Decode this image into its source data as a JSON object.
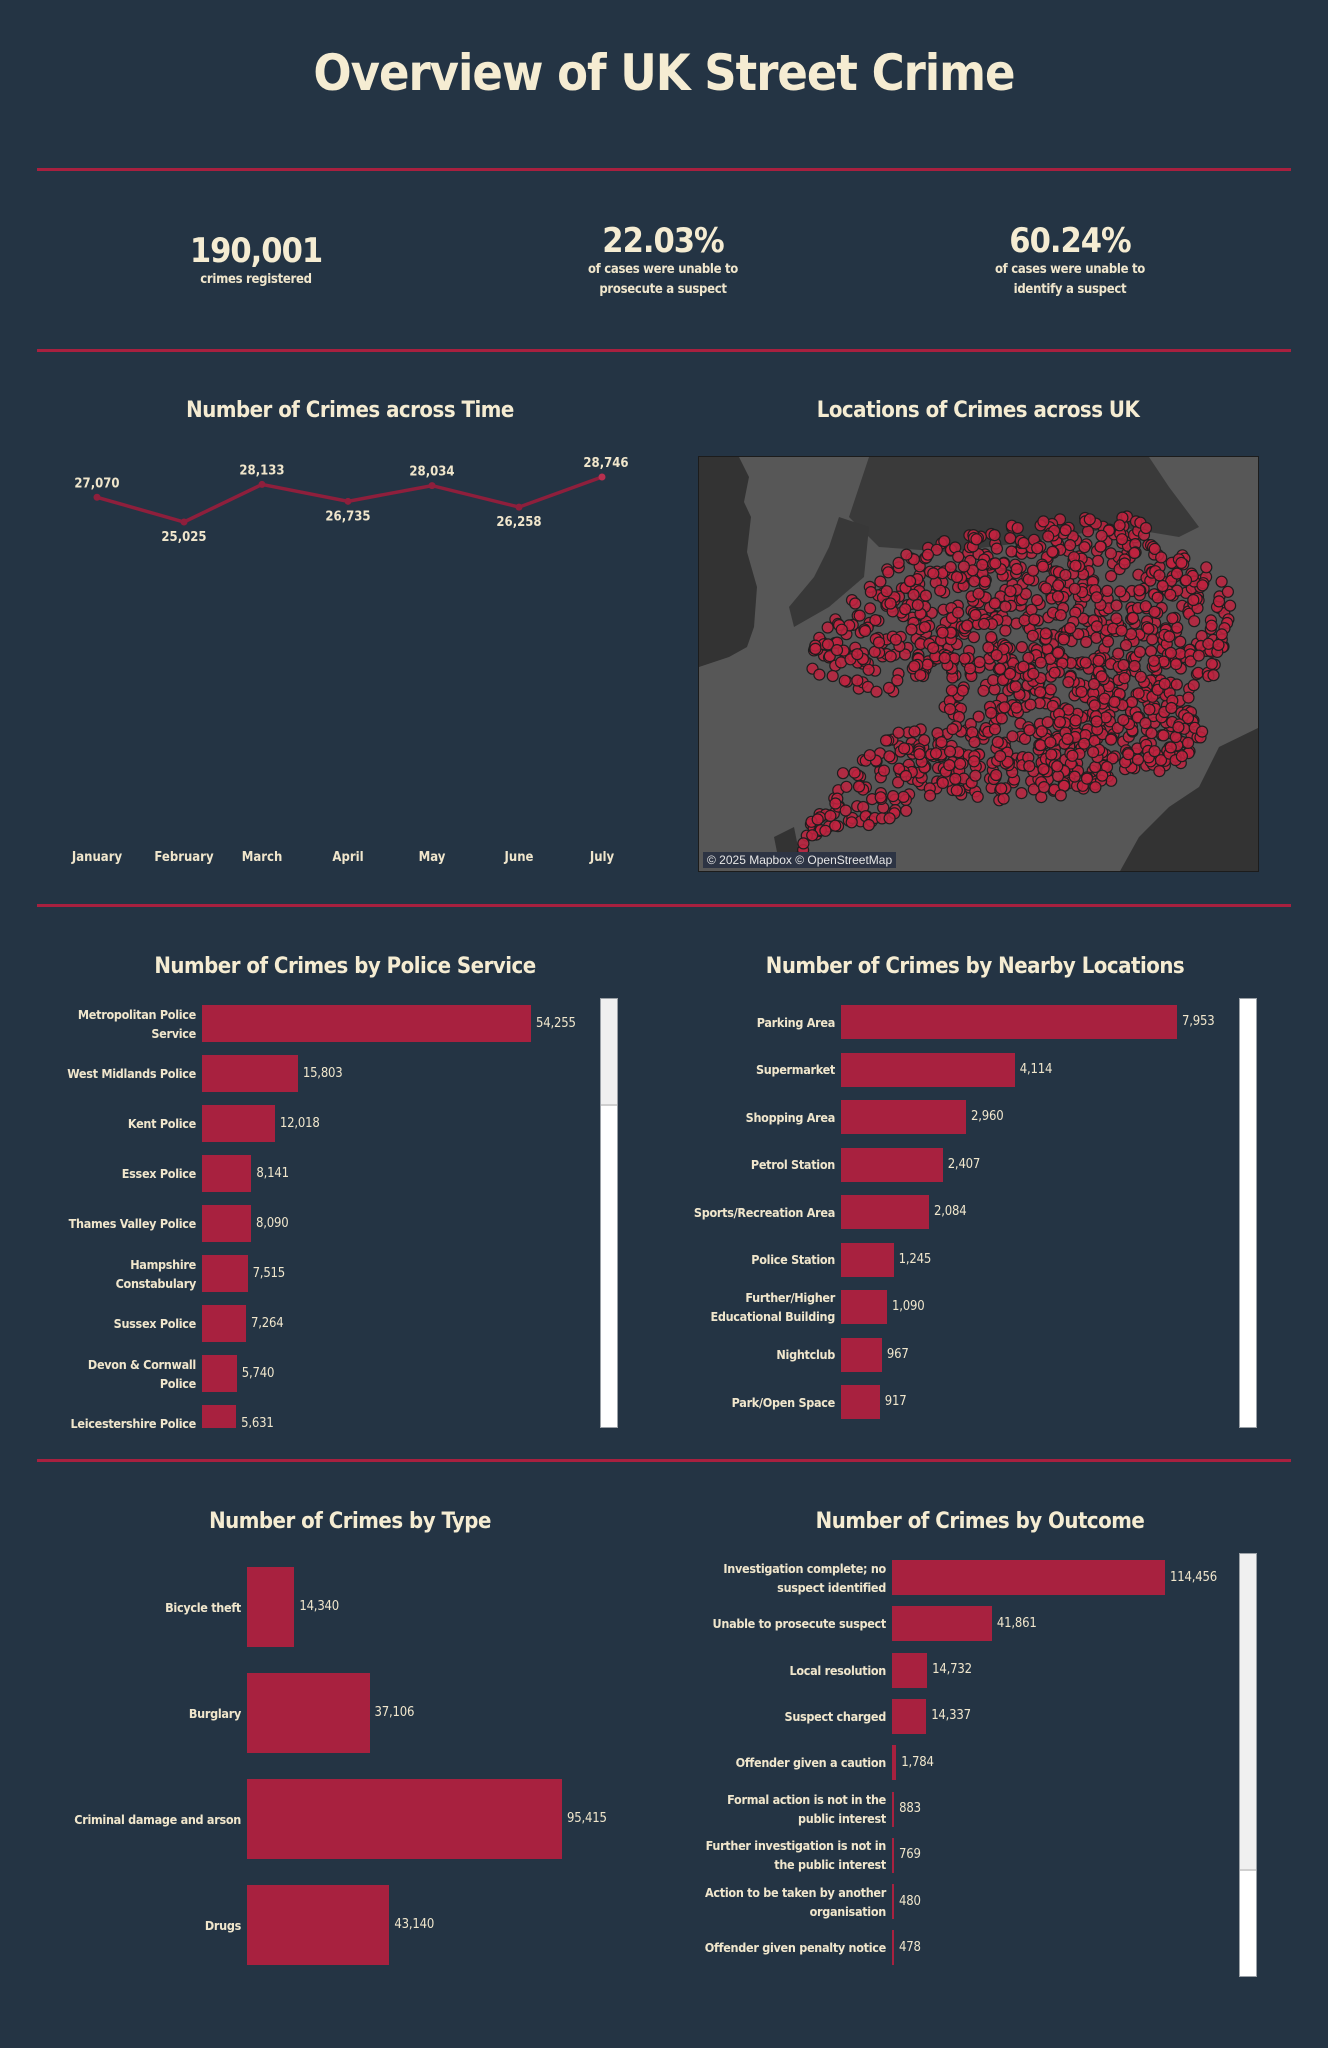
{
  "header": {
    "title": "Overview of UK Street Crime"
  },
  "kpis": [
    {
      "value": "190,001",
      "label_lines": [
        "crimes registered"
      ]
    },
    {
      "value": "22.03%",
      "label_lines": [
        "of cases were unable to",
        "prosecute a suspect"
      ]
    },
    {
      "value": "60.24%",
      "label_lines": [
        "of cases were unable to",
        "identify a suspect"
      ]
    }
  ],
  "colors": {
    "background": "#243444",
    "accent": "#a8213f",
    "text": "#f5ecd2"
  },
  "map": {
    "title": "Locations of Crimes across UK",
    "attribution": "© 2025 Mapbox © OpenStreetMap"
  },
  "chart_data": [
    {
      "id": "time",
      "type": "line",
      "title": "Number of Crimes across Time",
      "categories": [
        "January",
        "February",
        "March",
        "April",
        "May",
        "June",
        "July"
      ],
      "values": [
        27070,
        25025,
        28133,
        26735,
        28034,
        26258,
        28746
      ],
      "labels": [
        "27,070",
        "25,025",
        "28,133",
        "26,735",
        "28,034",
        "26,258",
        "28,746"
      ],
      "xlabel": "",
      "ylabel": "",
      "grid": false
    },
    {
      "id": "police",
      "type": "bar",
      "orientation": "horizontal",
      "title": "Number of Crimes by Police Service",
      "categories": [
        "Metropolitan Police Service",
        "West Midlands Police",
        "Kent Police",
        "Essex Police",
        "Thames Valley Police",
        "Hampshire Constabulary",
        "Sussex Police",
        "Devon & Cornwall Police",
        "Leicestershire Police"
      ],
      "values": [
        54255,
        15803,
        12018,
        8141,
        8090,
        7515,
        7264,
        5740,
        5631
      ],
      "labels": [
        "54,255",
        "15,803",
        "12,018",
        "8,141",
        "8,090",
        "7,515",
        "7,264",
        "5,740",
        "5,631"
      ],
      "scroll_position": 0,
      "visible_fraction": 0.25
    },
    {
      "id": "nearby",
      "type": "bar",
      "orientation": "horizontal",
      "title": "Number of Crimes by Nearby Locations",
      "categories": [
        "Parking Area",
        "Supermarket",
        "Shopping Area",
        "Petrol Station",
        "Sports/Recreation Area",
        "Police Station",
        "Further/Higher Educational Building",
        "Nightclub",
        "Park/Open Space"
      ],
      "values": [
        7953,
        4114,
        2960,
        2407,
        2084,
        1245,
        1090,
        967,
        917
      ],
      "labels": [
        "7,953",
        "4,114",
        "2,960",
        "2,407",
        "2,084",
        "1,245",
        "1,090",
        "967",
        "917"
      ],
      "scroll_position": 0,
      "visible_fraction": 1.0
    },
    {
      "id": "type",
      "type": "bar",
      "orientation": "horizontal",
      "title": "Number of Crimes by Type",
      "categories": [
        "Bicycle theft",
        "Burglary",
        "Criminal damage and arson",
        "Drugs"
      ],
      "values": [
        14340,
        37106,
        95415,
        43140
      ],
      "labels": [
        "14,340",
        "37,106",
        "95,415",
        "43,140"
      ]
    },
    {
      "id": "outcome",
      "type": "bar",
      "orientation": "horizontal",
      "title": "Number of Crimes by Outcome",
      "categories": [
        "Investigation complete; no suspect identified",
        "Unable to prosecute suspect",
        "Local resolution",
        "Suspect charged",
        "Offender given a caution",
        "Formal action is not in the public interest",
        "Further investigation is not in the public interest",
        "Action to be taken by another organisation",
        "Offender given penalty notice"
      ],
      "values": [
        114456,
        41861,
        14732,
        14337,
        1784,
        883,
        769,
        480,
        478
      ],
      "labels": [
        "114,456",
        "41,861",
        "14,732",
        "14,337",
        "1,784",
        "883",
        "769",
        "480",
        "478"
      ],
      "scroll_position": 0,
      "visible_fraction": 0.75
    }
  ]
}
